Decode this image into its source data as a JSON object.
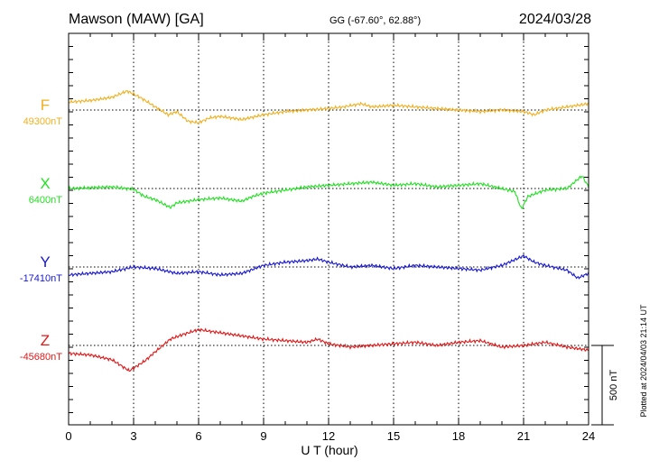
{
  "header": {
    "title": "Mawson (MAW)  [GA]",
    "coords": "GG (-67.60°,  62.88°)",
    "date": "2024/03/28"
  },
  "footer": {
    "plotted": "Plotted at 2024/04/03 21:14 UT"
  },
  "scale_bar": {
    "label": "500 nT",
    "value_nT": 500
  },
  "colors": {
    "F": "#f0b020",
    "X": "#22e022",
    "Y": "#1818d0",
    "Z": "#e01818"
  },
  "chart_data": {
    "type": "line",
    "xlabel": "U T (hour)",
    "xlim": [
      0,
      24
    ],
    "xticks": [
      0,
      3,
      6,
      9,
      12,
      15,
      18,
      21,
      24
    ],
    "grid": true,
    "series": [
      {
        "name": "F",
        "baseline_label": "49300nT",
        "baseline": 49300,
        "x": [
          0,
          1,
          2,
          2.7,
          3.3,
          4,
          4.6,
          5,
          5.5,
          6,
          6.5,
          7,
          8,
          9,
          10,
          11,
          12,
          12.7,
          13.5,
          14,
          15,
          16,
          17,
          18,
          19,
          20,
          21,
          21.5,
          22,
          23,
          24
        ],
        "y": [
          49350,
          49360,
          49380,
          49420,
          49380,
          49320,
          49270,
          49290,
          49230,
          49220,
          49250,
          49260,
          49240,
          49270,
          49290,
          49300,
          49310,
          49320,
          49340,
          49320,
          49330,
          49320,
          49310,
          49300,
          49290,
          49300,
          49290,
          49270,
          49300,
          49320,
          49340
        ]
      },
      {
        "name": "X",
        "baseline_label": "6400nT",
        "baseline": 6400,
        "x": [
          0,
          1,
          2,
          3,
          3.5,
          4,
          4.7,
          5,
          6,
          7,
          8,
          8.5,
          9,
          10,
          11,
          12,
          13,
          14,
          15,
          16,
          17,
          18,
          19,
          20,
          20.6,
          20.9,
          21.2,
          22,
          23,
          23.7,
          24
        ],
        "y": [
          6400,
          6405,
          6410,
          6395,
          6350,
          6330,
          6280,
          6310,
          6330,
          6340,
          6320,
          6350,
          6370,
          6390,
          6410,
          6420,
          6430,
          6440,
          6420,
          6430,
          6410,
          6420,
          6430,
          6400,
          6380,
          6270,
          6350,
          6390,
          6400,
          6480,
          6410
        ]
      },
      {
        "name": "Y",
        "baseline_label": "-17410nT",
        "baseline": -17410,
        "x": [
          0,
          1,
          2,
          3,
          4,
          5,
          6,
          7,
          8,
          9,
          10,
          11,
          11.5,
          12,
          13,
          14,
          15,
          16,
          17,
          18,
          19,
          20,
          21,
          21.5,
          22,
          23,
          23.5,
          24
        ],
        "y": [
          -17460,
          -17450,
          -17440,
          -17410,
          -17420,
          -17450,
          -17440,
          -17460,
          -17450,
          -17400,
          -17380,
          -17370,
          -17360,
          -17380,
          -17410,
          -17400,
          -17420,
          -17400,
          -17410,
          -17420,
          -17430,
          -17400,
          -17340,
          -17380,
          -17400,
          -17430,
          -17480,
          -17450
        ]
      },
      {
        "name": "Z",
        "baseline_label": "-45680nT",
        "baseline": -45680,
        "x": [
          0,
          1,
          2,
          2.8,
          3.5,
          4,
          4.7,
          5.3,
          6,
          6.5,
          7,
          8,
          9,
          10,
          11,
          11.5,
          12,
          13,
          14,
          15,
          16,
          17,
          18,
          19,
          20,
          21,
          22,
          23,
          24
        ],
        "y": [
          -45730,
          -45740,
          -45770,
          -45840,
          -45780,
          -45720,
          -45640,
          -45610,
          -45580,
          -45590,
          -45600,
          -45620,
          -45640,
          -45650,
          -45660,
          -45640,
          -45670,
          -45690,
          -45680,
          -45670,
          -45660,
          -45680,
          -45660,
          -45650,
          -45690,
          -45680,
          -45660,
          -45690,
          -45710
        ]
      }
    ]
  }
}
